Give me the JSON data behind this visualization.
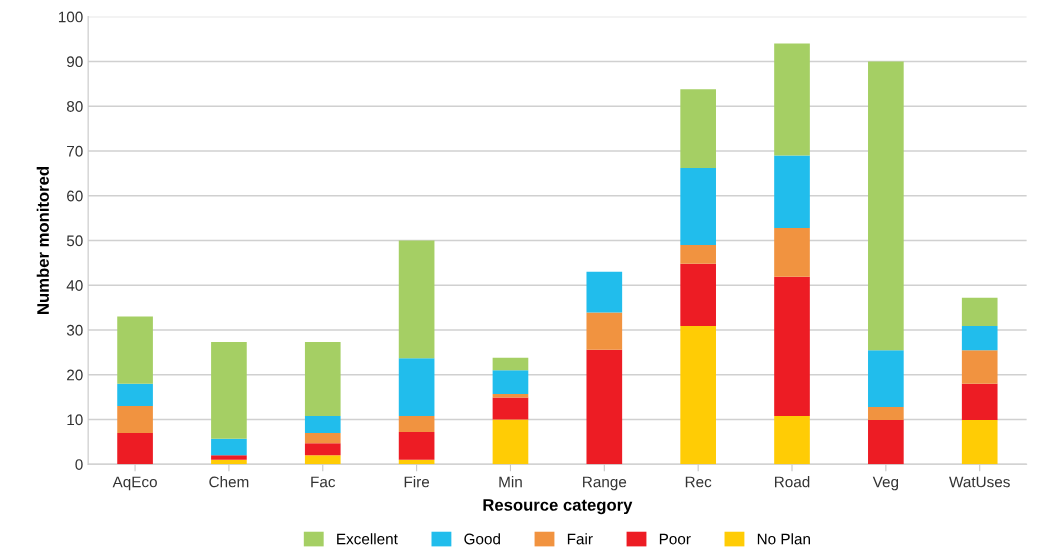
{
  "chart_data": {
    "type": "bar",
    "stacked": true,
    "xlabel": "Resource category",
    "ylabel": "Number monitored",
    "categories": [
      "AqEco",
      "Chem",
      "Fac",
      "Fire",
      "Min",
      "Range",
      "Rec",
      "Road",
      "Veg",
      "WatUses"
    ],
    "series": [
      {
        "name": "No Plan",
        "color": "#ffcc05",
        "values": [
          0,
          1,
          2,
          1,
          10,
          0,
          30.9,
          10.8,
          0,
          9.9
        ]
      },
      {
        "name": "Poor",
        "color": "#ed1c24",
        "values": [
          7,
          1,
          2.7,
          6.2,
          4.9,
          25.6,
          13.9,
          31.1,
          9.9,
          8.1
        ]
      },
      {
        "name": "Fair",
        "color": "#f19340",
        "values": [
          6,
          0,
          2.3,
          3.6,
          0.8,
          8.3,
          4.2,
          10.9,
          2.9,
          7.5
        ]
      },
      {
        "name": "Good",
        "color": "#21bdec",
        "values": [
          5,
          3.7,
          3.8,
          12.9,
          5.3,
          9.1,
          17.2,
          16.2,
          12.7,
          5.4
        ]
      },
      {
        "name": "Excellent",
        "color": "#a5cf64",
        "values": [
          15,
          21.6,
          16.5,
          26.3,
          2.8,
          0,
          17.6,
          25,
          64.5,
          6.3
        ]
      }
    ],
    "ylim": [
      0,
      100
    ],
    "yticks": [
      0,
      10,
      20,
      30,
      40,
      50,
      60,
      70,
      80,
      90,
      100
    ],
    "grid": "y",
    "legend": "bottom"
  }
}
